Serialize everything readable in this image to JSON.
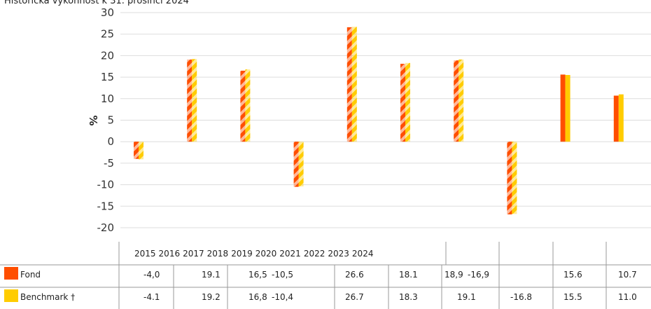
{
  "chart_data": {
    "type": "bar",
    "title": "Historická výkonnost k 31. prosinci 2024",
    "y_label": "%",
    "categories": [
      "2015",
      "2016",
      "2017",
      "2018",
      "2019",
      "2020",
      "2021",
      "2022",
      "2023",
      "2024"
    ],
    "series": [
      {
        "name": "Fond",
        "color": "#ff4e00",
        "values": [
          -4.0,
          19.1,
          16.5,
          -10.5,
          26.6,
          18.1,
          18.9,
          -16.9,
          15.6,
          10.7
        ],
        "value_labels": [
          "-4,0",
          "19.1",
          "16,5",
          "-10,5",
          "26.6",
          "18.1",
          "18,9",
          "-16,9",
          "15.6",
          "10.7"
        ]
      },
      {
        "name": "Benchmark †",
        "color": "#ffcc00",
        "values": [
          -4.1,
          19.2,
          16.8,
          -10.4,
          26.7,
          18.3,
          19.1,
          -16.8,
          15.5,
          11.0
        ],
        "value_labels": [
          "-4.1",
          "19.2",
          "16,8",
          "-10,4",
          "26.7",
          "18.3",
          "19.1",
          "-16.8",
          "15.5",
          "11.0"
        ]
      }
    ],
    "striped": [
      true,
      true,
      true,
      true,
      true,
      true,
      true,
      true,
      false,
      false
    ],
    "ylim": [
      -20,
      30
    ],
    "yticks": [
      -20,
      -15,
      -10,
      -5,
      0,
      5,
      10,
      15,
      20,
      25,
      30
    ],
    "grid": true
  }
}
